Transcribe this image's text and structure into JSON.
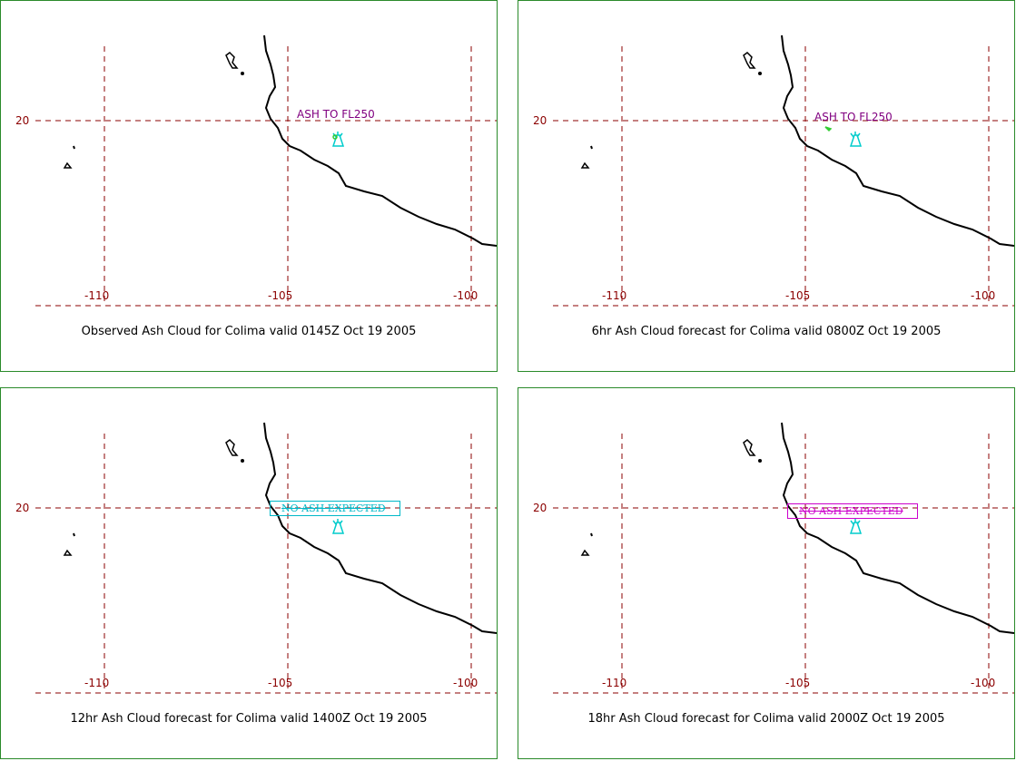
{
  "colors": {
    "panel_border": "#2a8a2a",
    "gridline": "#8b0000",
    "coastline": "#000000",
    "volcano": "#00cccc",
    "ash_label_purple": "#800080",
    "ash_label_magenta": "#cc00cc",
    "ash_label_cyan": "#00b8c8",
    "ash_patch_green": "#33cc33"
  },
  "grid": {
    "lat_labels": [
      "20"
    ],
    "lon_labels": [
      "-110",
      "-105",
      "-100"
    ]
  },
  "icons": {
    "volcano": "volcano-icon"
  },
  "panels": [
    {
      "caption": "Observed Ash Cloud for Colima valid 0145Z Oct 19 2005",
      "ash_text": "ASH TO FL250",
      "ash_style": "plain",
      "ash_color": "#800080"
    },
    {
      "caption": "6hr Ash Cloud forecast for Colima valid 0800Z Oct 19 2005",
      "ash_text": "ASH TO FL250",
      "ash_style": "plain",
      "ash_color": "#800080"
    },
    {
      "caption": "12hr Ash Cloud forecast for Colima valid 1400Z Oct 19 2005",
      "ash_text": "NO ASH EXPECTED",
      "ash_style": "boxed",
      "ash_color": "#00b8c8"
    },
    {
      "caption": "18hr Ash Cloud forecast for Colima valid 2000Z Oct 19 2005",
      "ash_text": "NO ASH EXPECTED",
      "ash_style": "boxed",
      "ash_color": "#cc00cc"
    }
  ]
}
